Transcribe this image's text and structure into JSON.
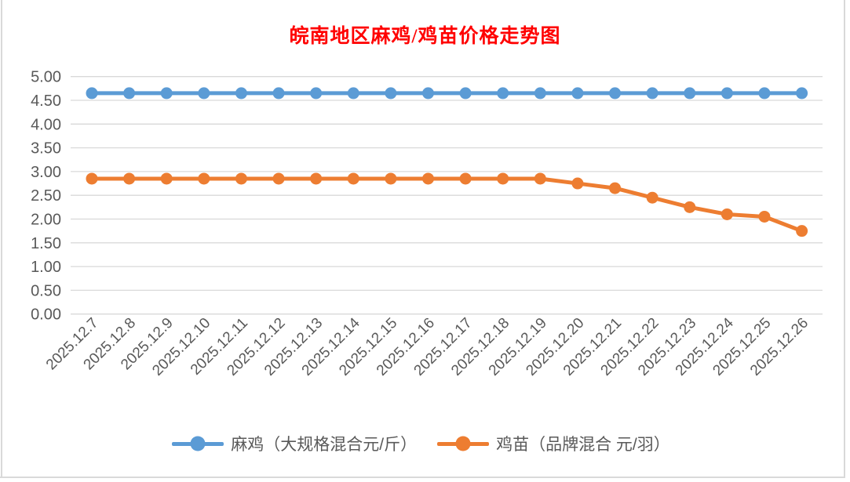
{
  "title": "皖南地区麻鸡/鸡苗价格走势图",
  "colors": {
    "title": "#FF0000",
    "series1": "#5B9BD5",
    "series2": "#ED7D31",
    "axis_text": "#595959",
    "gridline": "#D9D9D9",
    "edge": "#D9D9D9",
    "background": "#FFFFFF"
  },
  "chart_data": {
    "type": "line",
    "title": "皖南地区麻鸡/鸡苗价格走势图",
    "categories": [
      "2025.12.7",
      "2025.12.8",
      "2025.12.9",
      "2025.12.10",
      "2025.12.11",
      "2025.12.12",
      "2025.12.13",
      "2025.12.14",
      "2025.12.15",
      "2025.12.16",
      "2025.12.17",
      "2025.12.18",
      "2025.12.19",
      "2025.12.20",
      "2025.12.21",
      "2025.12.22",
      "2025.12.23",
      "2025.12.24",
      "2025.12.25",
      "2025.12.26"
    ],
    "series": [
      {
        "name": "麻鸡（大规格混合元/斤）",
        "color": "#5B9BD5",
        "values": [
          4.65,
          4.65,
          4.65,
          4.65,
          4.65,
          4.65,
          4.65,
          4.65,
          4.65,
          4.65,
          4.65,
          4.65,
          4.65,
          4.65,
          4.65,
          4.65,
          4.65,
          4.65,
          4.65,
          4.65
        ]
      },
      {
        "name": "鸡苗（品牌混合 元/羽）",
        "color": "#ED7D31",
        "values": [
          2.85,
          2.85,
          2.85,
          2.85,
          2.85,
          2.85,
          2.85,
          2.85,
          2.85,
          2.85,
          2.85,
          2.85,
          2.85,
          2.75,
          2.65,
          2.45,
          2.25,
          2.1,
          2.05,
          1.75
        ]
      }
    ],
    "xlabel": "",
    "ylabel": "",
    "ylim": [
      0,
      5
    ],
    "ytick_step": 0.5,
    "ytick_format": "2-decimals",
    "grid": true,
    "gridlines": "horizontal-only",
    "x_label_rotation_deg": 45,
    "legend_position": "bottom"
  }
}
